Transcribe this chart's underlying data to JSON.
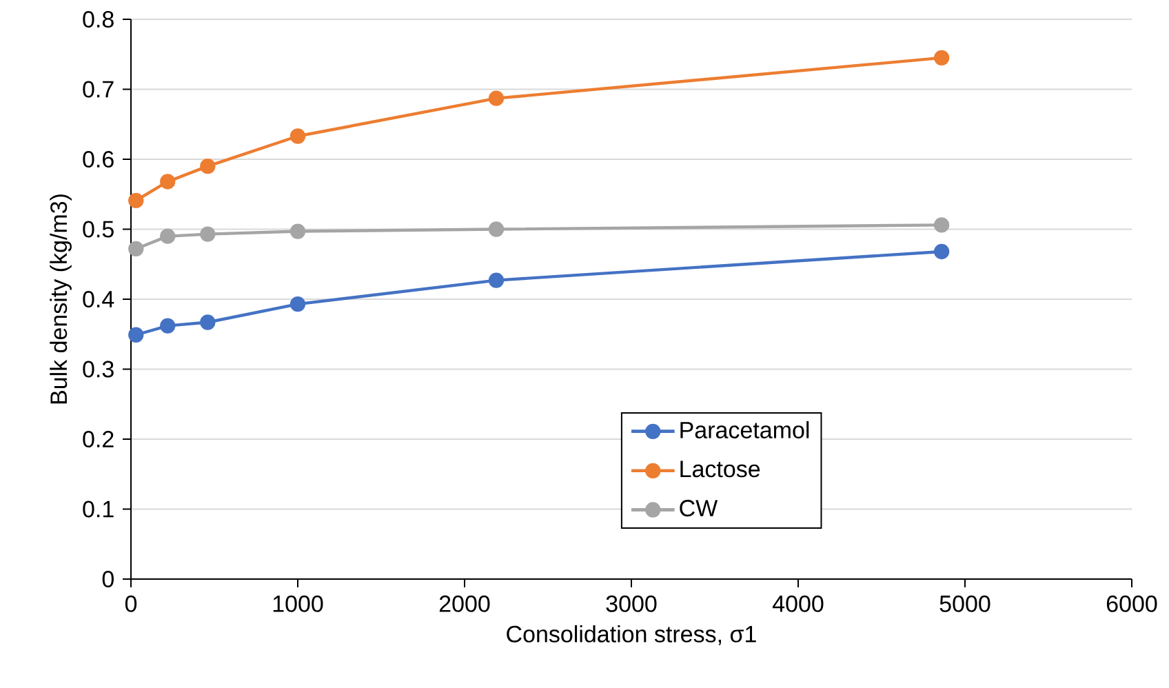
{
  "chart_data": {
    "type": "line",
    "xlabel": "Consolidation stress, σ1",
    "ylabel": "Bulk density (kg/m3)",
    "xlim": [
      0,
      6000
    ],
    "xticks": [
      0,
      1000,
      2000,
      3000,
      4000,
      5000,
      6000
    ],
    "ylim": [
      0,
      0.8
    ],
    "yticks": [
      0,
      0.1,
      0.2,
      0.3,
      0.4,
      0.5,
      0.6,
      0.7,
      0.8
    ],
    "x": [
      30,
      220,
      460,
      1000,
      2190,
      4860
    ],
    "series": [
      {
        "name": "Paracetamol",
        "color": "#4472c4",
        "values": [
          0.349,
          0.362,
          0.367,
          0.393,
          0.427,
          0.468
        ]
      },
      {
        "name": "Lactose",
        "color": "#ed7d31",
        "values": [
          0.541,
          0.568,
          0.59,
          0.633,
          0.687,
          0.745
        ]
      },
      {
        "name": "CW",
        "color": "#a5a5a5",
        "values": [
          0.472,
          0.49,
          0.493,
          0.497,
          0.5,
          0.506
        ]
      }
    ],
    "grid": "y",
    "legend": "bottom",
    "marker": "circle",
    "line_style": "solid"
  }
}
